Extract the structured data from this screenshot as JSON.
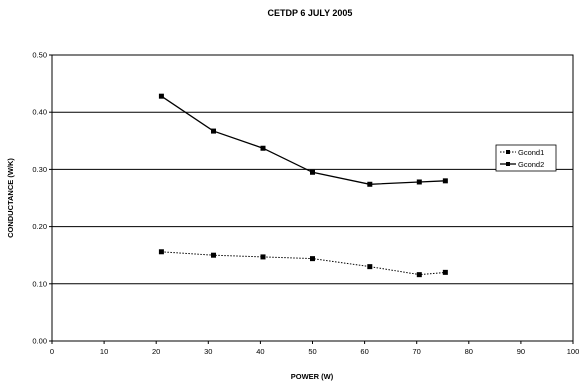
{
  "chart_data": {
    "type": "line",
    "title": "CETDP  6 JULY 2005",
    "xlabel": "POWER (W)",
    "ylabel": "CONDUCTANCE (W/K)",
    "xlim": [
      0,
      100
    ],
    "ylim": [
      0.0,
      0.5
    ],
    "x_ticks": [
      "0",
      "10",
      "20",
      "30",
      "40",
      "50",
      "60",
      "70",
      "80",
      "90",
      "100"
    ],
    "y_ticks": [
      "0.00",
      "0.10",
      "0.20",
      "0.30",
      "0.40",
      "0.50"
    ],
    "grid": "horizontal",
    "legend_position": "right",
    "series": [
      {
        "name": "Gcond1",
        "style": "dotted",
        "x": [
          21,
          31,
          40.5,
          50,
          61,
          70.5,
          75.5
        ],
        "y": [
          0.156,
          0.15,
          0.147,
          0.144,
          0.13,
          0.116,
          0.12
        ]
      },
      {
        "name": "Gcond2",
        "style": "solid",
        "x": [
          21,
          31,
          40.5,
          50,
          61,
          70.5,
          75.5
        ],
        "y": [
          0.428,
          0.367,
          0.337,
          0.295,
          0.274,
          0.278,
          0.28
        ]
      }
    ]
  }
}
